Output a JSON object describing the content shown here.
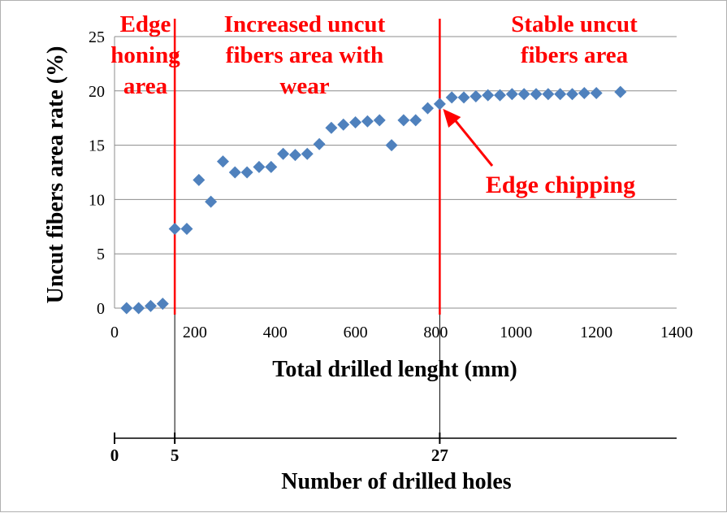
{
  "chart_data": {
    "type": "scatter",
    "xlabel": "Total drilled lenght (mm)",
    "ylabel": "Uncut fibers area rate (%)",
    "xlim": [
      0,
      1400
    ],
    "ylim": [
      0,
      25
    ],
    "x_ticks": [
      "0",
      "200",
      "400",
      "600",
      "800",
      "1000",
      "1200",
      "1400"
    ],
    "y_ticks": [
      "0",
      "5",
      "10",
      "15",
      "20",
      "25"
    ],
    "grid": "horizontal",
    "marker": "diamond",
    "marker_color": "#4f81bd",
    "series": [
      {
        "x": [
          30,
          60,
          90,
          120,
          150,
          180,
          210,
          240,
          270,
          300,
          330,
          360,
          390,
          420,
          450,
          480,
          510,
          540,
          570,
          600,
          630,
          660,
          690,
          720,
          750,
          780,
          810,
          840,
          870,
          900,
          930,
          960,
          990,
          1020,
          1050,
          1080,
          1110,
          1140,
          1170,
          1200,
          1260
        ],
        "y": [
          0.0,
          0.0,
          0.2,
          0.4,
          7.3,
          7.3,
          11.8,
          9.8,
          13.5,
          12.5,
          12.5,
          13.0,
          13.0,
          14.2,
          14.1,
          14.2,
          15.1,
          16.6,
          16.9,
          17.1,
          17.2,
          17.3,
          15.0,
          17.3,
          17.3,
          18.4,
          18.8,
          19.4,
          19.4,
          19.5,
          19.6,
          19.6,
          19.7,
          19.7,
          19.7,
          19.7,
          19.7,
          19.7,
          19.8,
          19.8,
          19.9
        ]
      }
    ],
    "boundaries": [
      {
        "x": 150,
        "line_color": "#ff0000"
      },
      {
        "x": 810,
        "line_color": "#ff0000"
      }
    ],
    "regions": [
      {
        "lines": [
          "Edge",
          "honing",
          "area"
        ]
      },
      {
        "lines": [
          "Increased uncut",
          "fibers area with",
          "wear"
        ]
      },
      {
        "lines": [
          "Stable uncut",
          "fibers area"
        ]
      }
    ],
    "annotation": {
      "text": "Edge chipping",
      "arrow_to": {
        "x": 810,
        "y": 18.8
      },
      "color": "#ff0000"
    },
    "secondary_axis": {
      "title": "Number of drilled holes",
      "ticks": [
        {
          "label": "0",
          "x": 0
        },
        {
          "label": "5",
          "x": 150
        },
        {
          "label": "27",
          "x": 810
        }
      ]
    }
  }
}
